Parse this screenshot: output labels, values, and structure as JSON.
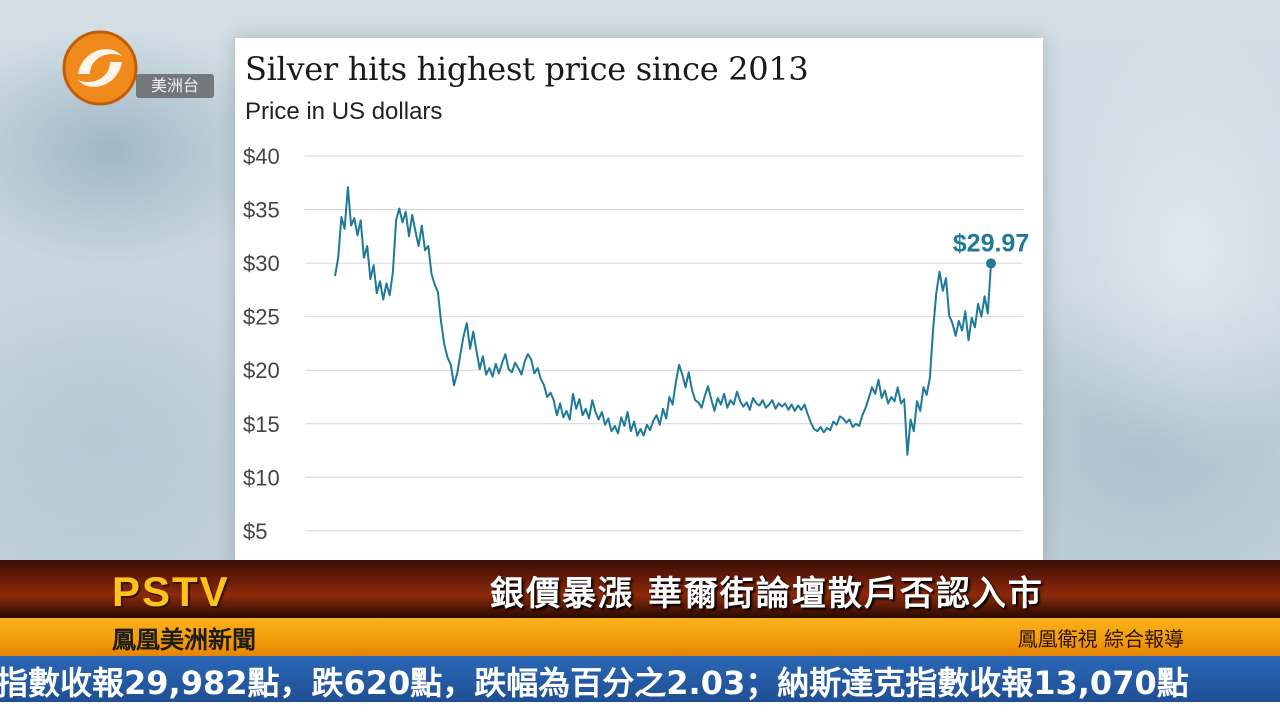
{
  "logo": {
    "tag": "美洲台",
    "colors": {
      "orange": "#f08a1c",
      "dark": "#c25e08"
    }
  },
  "chart_data": {
    "type": "line",
    "title": "Silver hits highest price since 2013",
    "subtitle": "Price in US dollars",
    "yticks": [
      "$40",
      "$35",
      "$30",
      "$25",
      "$20",
      "$15",
      "$10",
      "$5"
    ],
    "ytick_values": [
      40,
      35,
      30,
      25,
      20,
      15,
      10,
      5
    ],
    "ylim": [
      5,
      40
    ],
    "grid": true,
    "line_color": "#1f7a99",
    "end_label": "$29.97",
    "end_value": 29.97,
    "values": [
      28.8,
      30.5,
      34.3,
      33.2,
      37.1,
      33.5,
      34.2,
      32.6,
      34.0,
      30.5,
      31.6,
      28.5,
      29.8,
      27.2,
      28.3,
      26.6,
      28.1,
      27.0,
      29.2,
      34.0,
      35.1,
      33.8,
      34.8,
      32.5,
      34.5,
      33.0,
      31.6,
      33.5,
      31.2,
      31.6,
      29.0,
      28.0,
      27.3,
      24.5,
      22.4,
      21.2,
      20.5,
      18.6,
      19.7,
      21.5,
      23.2,
      24.4,
      22.0,
      23.6,
      21.8,
      20.1,
      21.3,
      19.6,
      20.2,
      19.4,
      20.6,
      19.7,
      20.7,
      21.5,
      20.1,
      19.8,
      20.7,
      20.2,
      19.6,
      20.8,
      21.5,
      21.0,
      19.7,
      20.2,
      19.2,
      18.6,
      17.5,
      17.9,
      17.2,
      15.8,
      16.9,
      15.6,
      16.2,
      15.4,
      17.8,
      16.4,
      17.3,
      15.8,
      16.4,
      15.5,
      17.2,
      16.1,
      15.4,
      16.1,
      14.9,
      15.5,
      14.3,
      14.8,
      14.1,
      15.6,
      14.8,
      16.1,
      14.3,
      15.2,
      13.9,
      14.5,
      13.9,
      14.9,
      14.4,
      15.3,
      15.8,
      14.9,
      16.4,
      15.5,
      17.5,
      16.8,
      18.9,
      20.5,
      19.6,
      18.4,
      19.8,
      18.2,
      17.2,
      17.0,
      16.5,
      17.6,
      18.5,
      17.3,
      16.2,
      17.4,
      16.8,
      17.8,
      16.5,
      17.2,
      16.8,
      18.0,
      17.1,
      16.6,
      17.0,
      16.3,
      17.4,
      16.9,
      16.7,
      17.2,
      16.5,
      16.8,
      17.2,
      16.4,
      16.9,
      16.6,
      16.9,
      16.3,
      16.8,
      16.2,
      16.7,
      16.3,
      16.8,
      15.9,
      15.1,
      14.5,
      14.3,
      14.7,
      14.2,
      14.6,
      14.4,
      15.2,
      14.9,
      15.7,
      15.5,
      15.1,
      15.4,
      14.7,
      15.0,
      14.8,
      15.8,
      16.5,
      17.4,
      18.4,
      17.8,
      19.1,
      17.4,
      18.1,
      16.9,
      17.5,
      17.1,
      18.4,
      16.9,
      17.3,
      12.1,
      15.4,
      14.3,
      17.1,
      16.2,
      18.4,
      17.7,
      19.3,
      23.8,
      27.2,
      29.2,
      27.4,
      28.6,
      25.1,
      24.4,
      23.2,
      24.6,
      23.7,
      25.5,
      22.8,
      24.9,
      24.0,
      26.2,
      25.0,
      26.9,
      25.3,
      29.97
    ]
  },
  "banner": {
    "channel": "PSTV",
    "headline": "銀價暴漲 華爾街論壇散戶否認入市",
    "station": "鳳凰美洲新聞",
    "credit": "鳳凰衛視 綜合報導",
    "ticker": "指數收報29,982點，跌620點，跌幅為百分之2.03；納斯達克指數收報13,070點",
    "colors": {
      "pstv": "#ffc21a",
      "band": "#f39d0c",
      "ticker_bg": "#2a67b6"
    }
  }
}
